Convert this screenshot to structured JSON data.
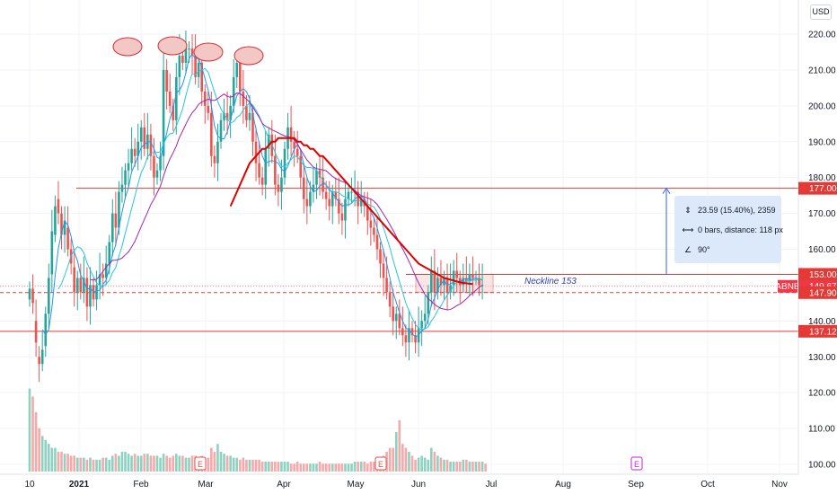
{
  "chart_data": {
    "type": "candlestick",
    "symbol": "ABNB",
    "currency": "USD",
    "y_axis": {
      "ticks": [
        "220.00",
        "210.00",
        "200.00",
        "190.00",
        "180.00",
        "170.00",
        "160.00",
        "150.00",
        "140.00",
        "130.00",
        "120.00",
        "110.00",
        "100.00"
      ],
      "tick_values": [
        220,
        210,
        200,
        190,
        180,
        170,
        160,
        150,
        140,
        130,
        120,
        110,
        100
      ]
    },
    "x_axis": {
      "ticks": [
        "10",
        "2021",
        "Feb",
        "Mar",
        "Apr",
        "May",
        "Jun",
        "Jul",
        "Aug",
        "Sep",
        "Oct",
        "Nov"
      ],
      "bold_ticks": [
        "2021"
      ]
    },
    "price_labels": [
      {
        "text": "177.00",
        "value": 177.0,
        "color": "#e53935"
      },
      {
        "text": "153.00",
        "value": 153.0,
        "color": "#e53935"
      },
      {
        "text": "149.67",
        "value": 149.67,
        "color": "#f23645",
        "prefix": "ABNB"
      },
      {
        "text": "147.90",
        "value": 147.9,
        "color": "#e53935"
      },
      {
        "text": "137.12",
        "value": 137.12,
        "color": "#e53935"
      }
    ],
    "horizontal_lines": [
      {
        "value": 177.0,
        "color": "#e53935"
      },
      {
        "value": 153.0,
        "color": "#e53935"
      },
      {
        "value": 147.9,
        "color": "#e53935",
        "dashed": true
      },
      {
        "value": 137.12,
        "color": "#e53935"
      }
    ],
    "annotations": {
      "neckline_label": "Neckline 153",
      "earnings_markers": [
        "E",
        "E",
        "E"
      ],
      "measure": {
        "range": "23.59 (15.40%), 2359",
        "bars": "0 bars, distance: 118 px",
        "angle": "90°"
      }
    },
    "closes": [
      149,
      145,
      134,
      128,
      132,
      142,
      152,
      165,
      172,
      170,
      164,
      168,
      160,
      156,
      148,
      152,
      148,
      152,
      144,
      150,
      146,
      150,
      153,
      152,
      156,
      162,
      170,
      166,
      176,
      178,
      182,
      184,
      188,
      186,
      190,
      194,
      188,
      192,
      186,
      180,
      182,
      186,
      210,
      204,
      200,
      196,
      208,
      214,
      212,
      216,
      216,
      214,
      208,
      212,
      204,
      200,
      198,
      186,
      184,
      190,
      196,
      198,
      196,
      200,
      208,
      212,
      204,
      200,
      196,
      198,
      190,
      184,
      180,
      178,
      188,
      192,
      186,
      178,
      176,
      180,
      188,
      194,
      190,
      188,
      186,
      180,
      174,
      172,
      176,
      178,
      182,
      180,
      176,
      174,
      172,
      176,
      174,
      170,
      168,
      174,
      176,
      176,
      176,
      172,
      174,
      172,
      168,
      166,
      164,
      160,
      156,
      152,
      148,
      144,
      140,
      142,
      138,
      136,
      134,
      138,
      136,
      134,
      138,
      140,
      142,
      148,
      154,
      148,
      152,
      150,
      152,
      148,
      150,
      154,
      152,
      150,
      152,
      151,
      153,
      152,
      152,
      150,
      150
    ],
    "opens": [
      146,
      149,
      140,
      130,
      128,
      133,
      142,
      153,
      164,
      174,
      170,
      164,
      166,
      160,
      155,
      148,
      152,
      148,
      152,
      144,
      150,
      146,
      150,
      153,
      152,
      156,
      162,
      170,
      166,
      176,
      178,
      182,
      184,
      188,
      186,
      190,
      194,
      188,
      192,
      186,
      180,
      182,
      186,
      210,
      204,
      200,
      196,
      208,
      214,
      212,
      216,
      216,
      214,
      208,
      212,
      204,
      200,
      198,
      186,
      184,
      190,
      196,
      198,
      196,
      200,
      208,
      212,
      204,
      200,
      196,
      198,
      190,
      184,
      180,
      178,
      188,
      192,
      186,
      178,
      176,
      180,
      188,
      194,
      190,
      188,
      186,
      180,
      174,
      172,
      176,
      178,
      182,
      180,
      176,
      174,
      172,
      176,
      174,
      170,
      168,
      174,
      176,
      176,
      176,
      172,
      174,
      172,
      168,
      166,
      164,
      160,
      156,
      152,
      148,
      144,
      140,
      142,
      138,
      136,
      134,
      138,
      136,
      134,
      138,
      140,
      142,
      148,
      154,
      148,
      152,
      150,
      152,
      148,
      150,
      154,
      152,
      150,
      152,
      151,
      153,
      152,
      152,
      150
    ],
    "volumes": [
      42,
      38,
      30,
      22,
      18,
      16,
      14,
      12,
      12,
      10,
      10,
      9,
      9,
      8,
      8,
      7,
      7,
      7,
      6,
      7,
      6,
      6,
      6,
      7,
      7,
      6,
      8,
      9,
      8,
      10,
      10,
      9,
      8,
      9,
      8,
      8,
      9,
      9,
      8,
      8,
      8,
      7,
      9,
      8,
      7,
      8,
      9,
      8,
      8,
      7,
      7,
      8,
      8,
      7,
      8,
      7,
      7,
      12,
      10,
      14,
      10,
      9,
      8,
      8,
      7,
      7,
      6,
      7,
      6,
      6,
      6,
      6,
      6,
      5,
      5,
      5,
      5,
      5,
      5,
      5,
      5,
      5,
      4,
      4,
      5,
      4,
      4,
      4,
      4,
      4,
      4,
      5,
      4,
      4,
      4,
      4,
      4,
      4,
      4,
      4,
      4,
      4,
      5,
      5,
      5,
      5,
      4,
      5,
      5,
      6,
      7,
      8,
      10,
      12,
      12,
      20,
      26,
      14,
      12,
      10,
      8,
      6,
      7,
      8,
      7,
      6,
      12,
      10,
      8,
      7,
      6,
      6,
      5,
      5,
      5,
      5,
      6,
      6,
      5,
      5,
      5,
      5,
      5,
      4
    ],
    "ma_long": [
      null,
      null,
      null,
      null,
      null,
      null,
      null,
      null,
      null,
      null,
      null,
      null,
      null,
      null,
      null,
      null,
      null,
      null,
      null,
      null,
      null,
      null,
      null,
      null,
      null,
      null,
      null,
      null,
      null,
      null,
      null,
      null,
      null,
      null,
      null,
      null,
      null,
      null,
      null,
      null,
      null,
      null,
      null,
      null,
      null,
      null,
      null,
      null,
      null,
      null,
      null,
      null,
      null,
      null,
      null,
      null,
      null,
      null,
      null,
      null,
      null,
      null,
      null,
      172,
      174,
      176,
      178,
      180,
      182,
      184,
      185,
      186,
      187,
      188,
      188,
      189,
      190,
      190,
      191,
      191,
      191,
      191,
      191,
      191,
      190,
      190,
      189,
      189,
      188,
      188,
      187,
      186,
      186,
      185,
      184,
      183,
      182,
      181,
      180,
      179,
      178,
      177,
      176,
      175,
      174,
      173,
      172,
      171,
      170,
      169,
      168,
      167,
      166,
      165,
      164,
      163,
      162,
      161,
      160,
      159,
      158,
      157,
      156,
      155.5,
      155,
      154.5,
      154,
      153.5,
      153,
      152.5,
      152,
      151.8,
      151.5,
      151.3,
      151,
      150.8,
      150.6,
      150.5,
      150.4,
      150.3
    ]
  }
}
